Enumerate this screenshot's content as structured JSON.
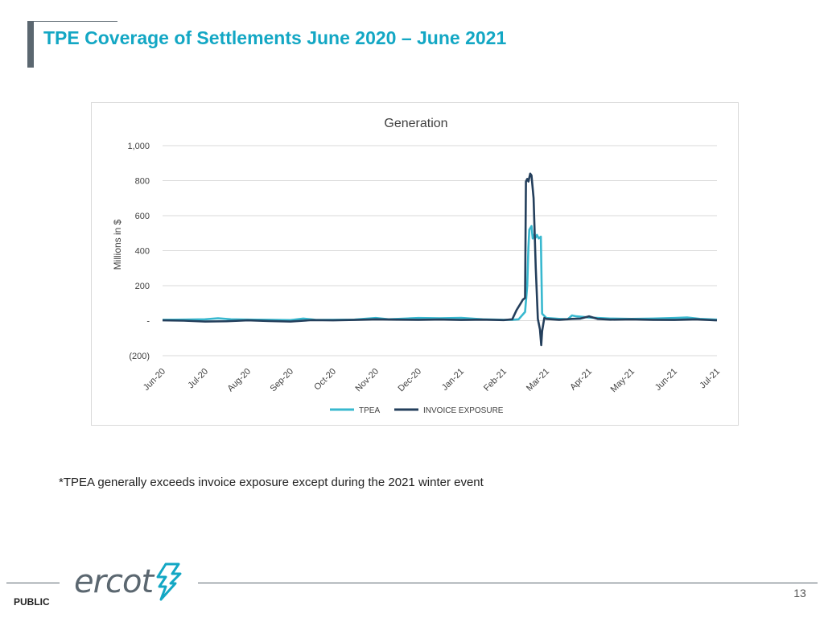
{
  "slide": {
    "title": "TPE Coverage of Settlements June 2020 – June 2021",
    "footnote": "*TPEA generally exceeds invoice exposure except during the 2021 winter event",
    "classification": "PUBLIC",
    "logo_text": "ercot",
    "page_number": "13"
  },
  "colors": {
    "title": "#13a7c4",
    "tpea": "#38b8cf",
    "invoice_exposure": "#243f5c",
    "grid": "#d9d9d9",
    "footer_gray": "#5b6770"
  },
  "chart_data": {
    "type": "line",
    "title": "Generation",
    "xlabel": "",
    "ylabel": "Millions in $",
    "ylim": [
      -200,
      1000
    ],
    "yticks": [
      {
        "value": 1000,
        "label": "1,000"
      },
      {
        "value": 800,
        "label": "800"
      },
      {
        "value": 600,
        "label": "600"
      },
      {
        "value": 400,
        "label": "400"
      },
      {
        "value": 200,
        "label": "200"
      },
      {
        "value": 0,
        "label": "-"
      },
      {
        "value": -200,
        "label": "(200)"
      }
    ],
    "xlim": [
      0,
      13
    ],
    "xticks": [
      "Jun-20",
      "Jul-20",
      "Aug-20",
      "Sep-20",
      "Oct-20",
      "Nov-20",
      "Dec-20",
      "Jan-21",
      "Feb-21",
      "Mar-21",
      "Apr-21",
      "May-21",
      "Jun-21",
      "Jul-21"
    ],
    "grid": true,
    "legend_position": "bottom",
    "series": [
      {
        "name": "TPEA",
        "color": "#38b8cf",
        "x": [
          0,
          0.5,
          1.0,
          1.3,
          1.6,
          2.0,
          2.5,
          3.0,
          3.3,
          3.6,
          4.0,
          4.5,
          5.0,
          5.3,
          5.7,
          6.0,
          6.5,
          7.0,
          7.5,
          8.0,
          8.2,
          8.35,
          8.5,
          8.55,
          8.58,
          8.6,
          8.65,
          8.68,
          8.7,
          8.75,
          8.78,
          8.82,
          8.87,
          8.9,
          9.0,
          9.3,
          9.5,
          9.6,
          9.7,
          10.0,
          10.5,
          11.0,
          11.5,
          12.0,
          12.3,
          12.6,
          13.0
        ],
        "values": [
          5,
          6,
          8,
          14,
          8,
          6,
          5,
          3,
          12,
          4,
          5,
          6,
          15,
          8,
          12,
          15,
          14,
          16,
          8,
          5,
          5,
          8,
          50,
          200,
          420,
          520,
          540,
          470,
          490,
          475,
          490,
          470,
          480,
          40,
          15,
          10,
          8,
          30,
          25,
          18,
          12,
          10,
          12,
          15,
          18,
          10,
          6
        ]
      },
      {
        "name": "INVOICE EXPOSURE",
        "color": "#243f5c",
        "x": [
          0,
          0.5,
          1.0,
          1.5,
          2.0,
          2.5,
          3.0,
          3.5,
          4.0,
          4.5,
          5.0,
          5.5,
          6.0,
          6.5,
          7.0,
          7.5,
          8.0,
          8.2,
          8.3,
          8.4,
          8.45,
          8.5,
          8.52,
          8.55,
          8.58,
          8.62,
          8.65,
          8.7,
          8.75,
          8.8,
          8.85,
          8.88,
          8.9,
          8.95,
          9.0,
          9.3,
          9.6,
          9.8,
          10.0,
          10.2,
          10.5,
          11.0,
          11.5,
          12.0,
          12.5,
          13.0
        ],
        "values": [
          2,
          0,
          -5,
          -3,
          2,
          -2,
          -5,
          3,
          2,
          4,
          8,
          6,
          5,
          7,
          4,
          6,
          3,
          8,
          60,
          100,
          120,
          130,
          795,
          810,
          795,
          840,
          830,
          700,
          300,
          10,
          -50,
          -140,
          -60,
          15,
          10,
          5,
          10,
          12,
          25,
          10,
          6,
          8,
          5,
          4,
          8,
          2
        ]
      }
    ]
  }
}
